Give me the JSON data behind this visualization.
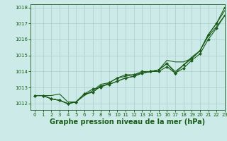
{
  "background_color": "#cceae7",
  "grid_color": "#aacccc",
  "line_color": "#1a5c1a",
  "marker_color": "#1a5c1a",
  "xlabel": "Graphe pression niveau de la mer (hPa)",
  "xlabel_fontsize": 7,
  "xlim": [
    -0.5,
    23
  ],
  "ylim": [
    1011.6,
    1018.2
  ],
  "yticks": [
    1012,
    1013,
    1014,
    1015,
    1016,
    1017,
    1018
  ],
  "xticks": [
    0,
    1,
    2,
    3,
    4,
    5,
    6,
    7,
    8,
    9,
    10,
    11,
    12,
    13,
    14,
    15,
    16,
    17,
    18,
    19,
    20,
    21,
    22,
    23
  ],
  "series": [
    [
      1012.5,
      1012.5,
      1012.5,
      1012.6,
      1012.1,
      1012.1,
      1012.5,
      1012.8,
      1013.2,
      1013.3,
      1013.6,
      1013.7,
      1013.8,
      1013.9,
      1014.0,
      1014.1,
      1014.7,
      1014.6,
      1014.6,
      1014.8,
      1015.3,
      1016.3,
      1017.0,
      1017.8
    ],
    [
      1012.5,
      1012.5,
      1012.3,
      1012.2,
      1012.0,
      1012.1,
      1012.6,
      1012.9,
      1013.0,
      1013.3,
      1013.6,
      1013.8,
      1013.8,
      1014.0,
      1014.0,
      1014.1,
      1014.5,
      1013.9,
      1014.4,
      1014.8,
      1015.3,
      1016.3,
      1017.0,
      1018.0
    ],
    [
      1012.5,
      1012.5,
      1012.3,
      1012.2,
      1012.0,
      1012.1,
      1012.6,
      1012.7,
      1013.1,
      1013.2,
      1013.4,
      1013.6,
      1013.7,
      1013.9,
      1014.0,
      1014.0,
      1014.3,
      1013.9,
      1014.2,
      1014.7,
      1015.1,
      1016.0,
      1016.7,
      1017.5
    ],
    [
      1012.5,
      1012.5,
      1012.3,
      1012.2,
      1012.0,
      1012.1,
      1012.6,
      1012.7,
      1013.1,
      1013.2,
      1013.4,
      1013.6,
      1013.7,
      1013.9,
      1014.0,
      1014.1,
      1014.5,
      1014.0,
      1014.4,
      1014.9,
      1015.3,
      1016.2,
      1016.8,
      1017.5
    ]
  ],
  "marker_styles": [
    "None",
    "D",
    "D",
    "None"
  ],
  "marker_sizes": [
    2,
    2,
    2,
    2
  ],
  "linewidths": [
    0.8,
    0.8,
    0.8,
    0.8
  ]
}
